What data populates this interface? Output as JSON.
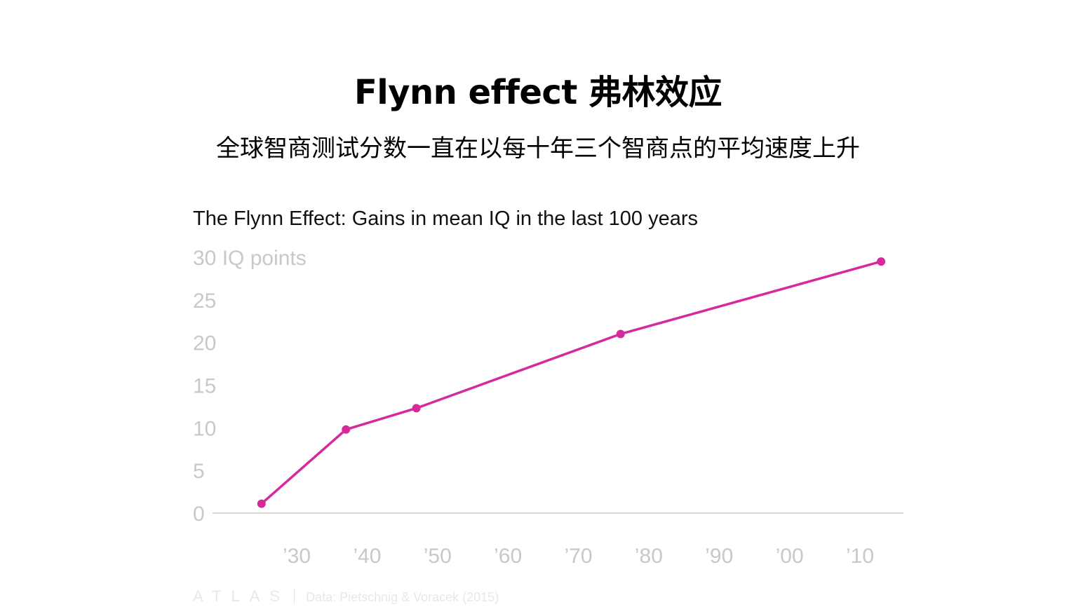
{
  "header": {
    "title": "Flynn effect 弗林效应",
    "subtitle": "全球智商测试分数一直在以每十年三个智商点的平均速度上升"
  },
  "chart_data": {
    "type": "line",
    "title": "The Flynn Effect: Gains in mean IQ in the last 100 years",
    "ylabel": "IQ points",
    "ylim": [
      0,
      30
    ],
    "yticks": [
      0,
      5,
      10,
      15,
      20,
      25,
      30
    ],
    "ytick_labels": [
      "0",
      "5",
      "10",
      "15",
      "20",
      "25",
      "30 IQ points"
    ],
    "xlim": [
      1920,
      2018
    ],
    "xticks": [
      1930,
      1940,
      1950,
      1960,
      1970,
      1980,
      1990,
      2000,
      2010
    ],
    "xtick_labels": [
      "’30",
      "’40",
      "’50",
      "’60",
      "’70",
      "’80",
      "’90",
      "’00",
      "’10"
    ],
    "grid": false,
    "series": [
      {
        "x": [
          1925,
          1937,
          1947,
          1976,
          2013
        ],
        "y": [
          1.1,
          9.8,
          12.3,
          21.0,
          29.5
        ],
        "color": "#d62a9c"
      }
    ]
  },
  "footer": {
    "brand": "ATLAS",
    "source": "Data: Pietschnig & Voracek (2015)"
  }
}
